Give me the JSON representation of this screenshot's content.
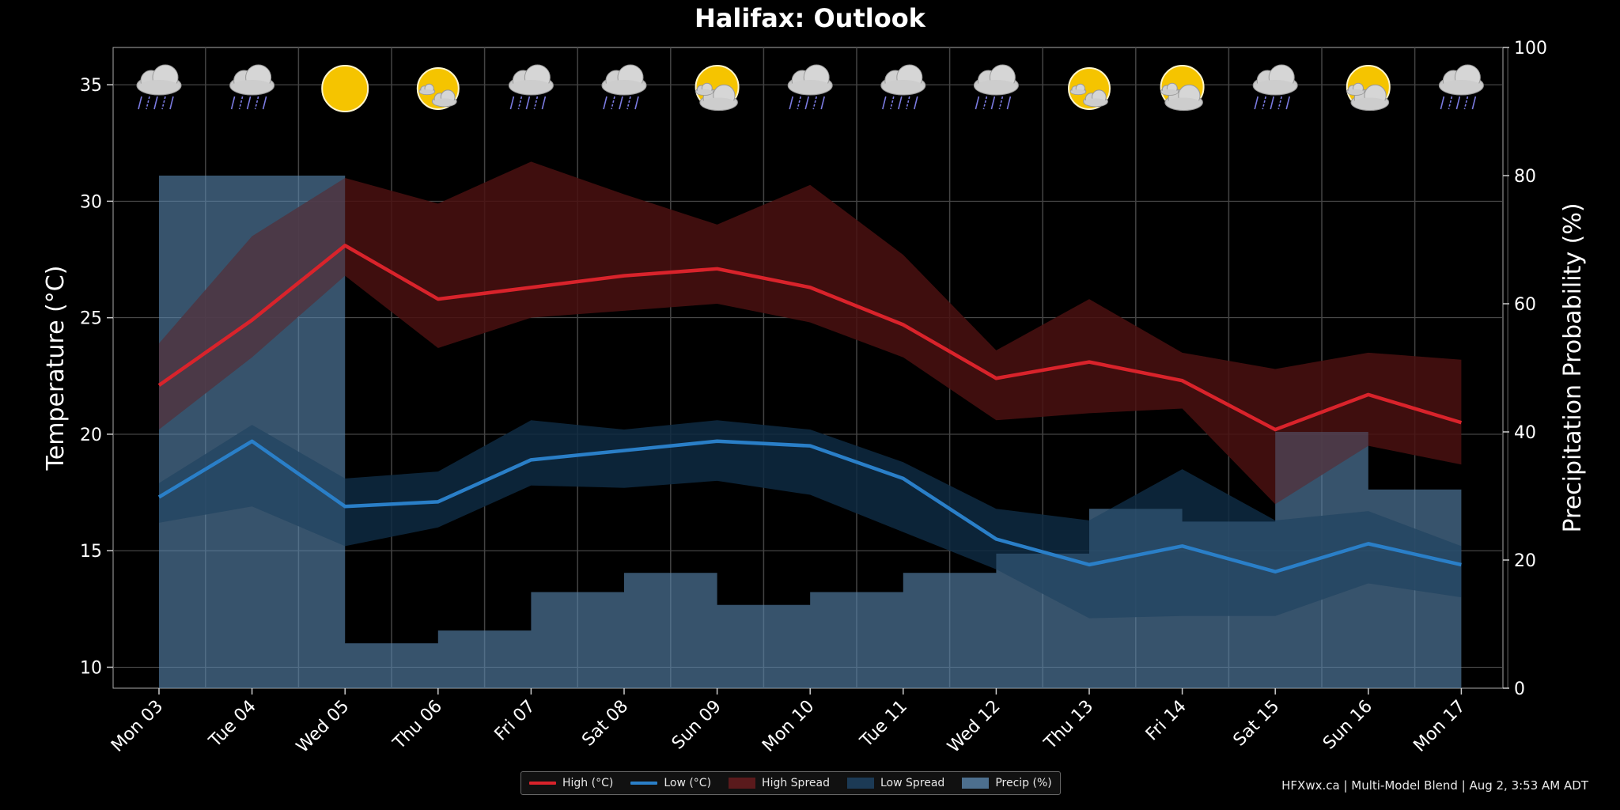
{
  "chart_data": {
    "type": "line",
    "title": "Halifax: Outlook",
    "ylabel": "Temperature (°C)",
    "y2label": "Precipitation Probability (%)",
    "ylim": [
      9.1,
      36.6
    ],
    "y2lim": [
      0,
      100
    ],
    "yticks": [
      10,
      15,
      20,
      25,
      30,
      35
    ],
    "y2ticks": [
      0,
      20,
      40,
      60,
      80,
      100
    ],
    "categories": [
      "Mon 03",
      "Tue 04",
      "Wed 05",
      "Thu 06",
      "Fri 07",
      "Sat 08",
      "Sun 09",
      "Mon 10",
      "Tue 11",
      "Wed 12",
      "Thu 13",
      "Fri 14",
      "Sat 15",
      "Sun 16",
      "Mon 17"
    ],
    "icons": [
      "rain-icon",
      "rain-icon",
      "sunny-icon",
      "mostly-sunny-icon",
      "rain-icon",
      "rain-icon",
      "partly-cloudy-icon",
      "rain-icon",
      "rain-icon",
      "rain-icon",
      "mostly-sunny-icon",
      "partly-cloudy-icon",
      "rain-icon",
      "partly-cloudy-icon",
      "rain-icon"
    ],
    "series": [
      {
        "name": "High (°C)",
        "color": "#d9232b",
        "values": [
          22.1,
          24.9,
          28.1,
          25.8,
          26.3,
          26.8,
          27.1,
          26.3,
          24.7,
          22.4,
          23.1,
          22.3,
          20.2,
          21.7,
          20.5
        ]
      },
      {
        "name": "Low (°C)",
        "color": "#2a7fc8",
        "values": [
          17.3,
          19.7,
          16.9,
          17.1,
          18.9,
          19.3,
          19.7,
          19.5,
          18.1,
          15.5,
          14.4,
          15.2,
          14.1,
          15.3,
          14.4
        ]
      }
    ],
    "bands": [
      {
        "name": "High Spread",
        "color": "#4a1010",
        "low": [
          20.2,
          23.3,
          26.8,
          23.7,
          25.0,
          25.3,
          25.6,
          24.8,
          23.3,
          20.6,
          20.9,
          21.1,
          17.0,
          19.5,
          18.7
        ],
        "high": [
          23.9,
          28.5,
          31.0,
          29.9,
          31.7,
          30.3,
          29.0,
          30.7,
          27.7,
          23.6,
          25.8,
          23.5,
          22.8,
          23.5,
          23.2
        ]
      },
      {
        "name": "Low Spread",
        "color": "#0e2a42",
        "low": [
          16.2,
          16.9,
          15.2,
          16.0,
          17.8,
          17.7,
          18.0,
          17.4,
          15.8,
          14.2,
          12.1,
          12.2,
          12.2,
          13.6,
          13.0
        ],
        "high": [
          17.9,
          20.4,
          18.1,
          18.4,
          20.6,
          20.2,
          20.6,
          20.2,
          18.8,
          16.8,
          16.3,
          18.5,
          16.3,
          16.7,
          15.2
        ]
      }
    ],
    "precip": {
      "name": "Precip (%)",
      "color": "#5a88b0",
      "values": [
        80,
        80,
        7,
        9,
        15,
        18,
        13,
        15,
        18,
        21,
        28,
        26,
        40,
        31,
        31
      ]
    },
    "legend_position": "bottom-center",
    "grid": true
  },
  "legend": {
    "items": [
      {
        "label": "High (°C)",
        "color": "#d9232b",
        "kind": "line"
      },
      {
        "label": "Low (°C)",
        "color": "#2a7fc8",
        "kind": "line"
      },
      {
        "label": "High Spread",
        "color": "#5a1a1c",
        "kind": "box"
      },
      {
        "label": "Low Spread",
        "color": "#1c3a55",
        "kind": "box"
      },
      {
        "label": "Precip (%)",
        "color": "#4d6f8e",
        "kind": "box"
      }
    ]
  },
  "footer": {
    "credit": "HFXwx.ca | Multi-Model Blend | Aug 2, 3:53 AM ADT"
  }
}
